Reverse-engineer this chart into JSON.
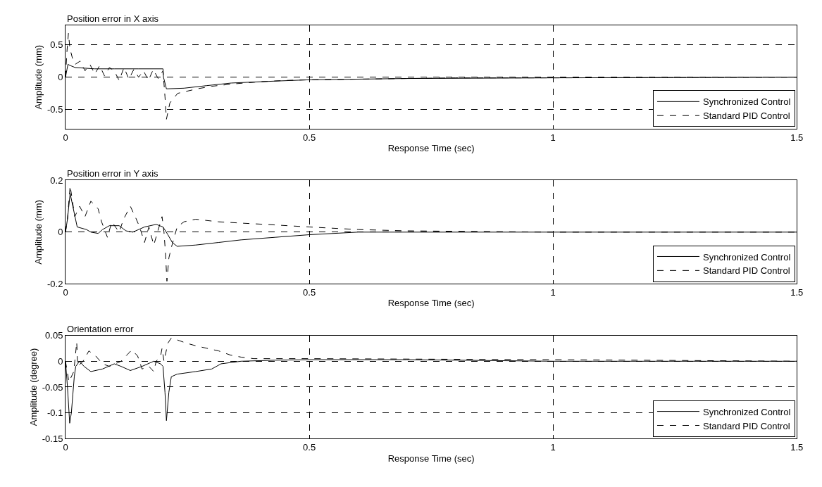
{
  "chart_data": [
    {
      "type": "line",
      "title": "Position error in X axis",
      "xlabel": "Response Time (sec)",
      "ylabel": "Amplitude (mm)",
      "xlim": [
        0,
        1.5
      ],
      "xticks": [
        0,
        0.5,
        1,
        1.5
      ],
      "ylim": [
        -0.8,
        0.8
      ],
      "yticks": [
        -0.5,
        0,
        0.5
      ],
      "grid": true,
      "legend": "bottom right",
      "series": [
        {
          "name": "Synchronized Control",
          "color": "#000000",
          "line_style": "solid",
          "x": [
            0,
            0.003,
            0.005,
            0.01,
            0.02,
            0.04,
            0.06,
            0.1,
            0.15,
            0.2,
            0.201,
            0.207,
            0.243,
            0.29,
            0.34,
            0.43,
            0.5,
            0.7,
            1.0,
            1.5
          ],
          "values": [
            0,
            0.12,
            0.2,
            0.18,
            0.15,
            0.14,
            0.13,
            0.13,
            0.13,
            0.13,
            0,
            -0.18,
            -0.17,
            -0.13,
            -0.09,
            -0.06,
            -0.04,
            -0.02,
            -0.01,
            0
          ]
        },
        {
          "name": "Standard PID Control",
          "color": "#000000",
          "line_style": "dashed",
          "x": [
            0,
            0.003,
            0.006,
            0.009,
            0.014,
            0.02,
            0.03,
            0.04,
            0.05,
            0.06,
            0.07,
            0.08,
            0.09,
            0.1,
            0.11,
            0.12,
            0.13,
            0.14,
            0.15,
            0.16,
            0.17,
            0.18,
            0.19,
            0.2,
            0.204,
            0.207,
            0.214,
            0.23,
            0.27,
            0.3,
            0.35,
            0.4,
            0.45,
            0.5,
            0.6,
            0.7,
            0.8,
            1.0,
            1.5
          ],
          "values": [
            0,
            0.4,
            0.68,
            0.45,
            0.3,
            0.2,
            0.25,
            0.1,
            0.2,
            0.05,
            0.18,
            0.02,
            0.15,
            0.1,
            -0.05,
            0.15,
            -0.03,
            0.12,
            0.0,
            0.1,
            -0.05,
            0.12,
            -0.02,
            0.1,
            -0.3,
            -0.65,
            -0.4,
            -0.25,
            -0.18,
            -0.14,
            -0.1,
            -0.07,
            -0.05,
            -0.04,
            -0.03,
            -0.02,
            -0.01,
            -0.01,
            0
          ]
        }
      ]
    },
    {
      "type": "line",
      "title": "Position error in Y axis",
      "xlabel": "Response Time (sec)",
      "ylabel": "Amplitude (mm)",
      "xlim": [
        0,
        1.5
      ],
      "xticks": [
        0,
        0.5,
        1,
        1.5
      ],
      "ylim": [
        -0.2,
        0.2
      ],
      "yticks": [
        -0.2,
        0,
        0.2
      ],
      "grid": true,
      "legend": "bottom right",
      "series": [
        {
          "name": "Synchronized Control",
          "color": "#000000",
          "line_style": "solid",
          "x": [
            0,
            0.004,
            0.0095,
            0.015,
            0.024,
            0.043,
            0.052,
            0.067,
            0.076,
            0.09,
            0.11,
            0.124,
            0.138,
            0.162,
            0.186,
            0.2,
            0.21,
            0.219,
            0.229,
            0.267,
            0.314,
            0.36,
            0.43,
            0.5,
            0.6,
            1.0,
            1.5
          ],
          "values": [
            0,
            0.05,
            0.15,
            0.1,
            0.02,
            0.01,
            0,
            -0.005,
            0.01,
            0.025,
            0.025,
            0.005,
            0,
            0.02,
            0.03,
            0.02,
            -0.01,
            -0.04,
            -0.055,
            -0.05,
            -0.04,
            -0.03,
            -0.02,
            -0.01,
            0,
            0,
            0
          ]
        },
        {
          "name": "Standard PID Control",
          "color": "#000000",
          "line_style": "dashed",
          "x": [
            0,
            0.004,
            0.0095,
            0.019,
            0.029,
            0.04,
            0.052,
            0.067,
            0.074,
            0.086,
            0.095,
            0.11,
            0.119,
            0.133,
            0.143,
            0.152,
            0.162,
            0.171,
            0.181,
            0.195,
            0.198,
            0.202,
            0.205,
            0.208,
            0.212,
            0.217,
            0.229,
            0.243,
            0.267,
            0.314,
            0.36,
            0.41,
            0.5,
            0.6,
            0.7,
            1.0,
            1.5
          ],
          "values": [
            0,
            0.05,
            0.18,
            0.06,
            0.1,
            0.06,
            0.12,
            0.09,
            0.04,
            -0.02,
            0.04,
            0,
            0.05,
            0.1,
            0.06,
            0.02,
            -0.04,
            0.02,
            -0.05,
            0.04,
            0.06,
            0,
            -0.08,
            -0.19,
            -0.1,
            -0.06,
            0.02,
            0.04,
            0.05,
            0.04,
            0.035,
            0.03,
            0.02,
            0.01,
            0.005,
            0,
            0
          ]
        }
      ]
    },
    {
      "type": "line",
      "title": "Orientation error",
      "xlabel": "Response Time (sec)",
      "ylabel": "Amplitude (degree)",
      "xlim": [
        0,
        1.5
      ],
      "xticks": [
        0,
        0.5,
        1,
        1.5
      ],
      "ylim": [
        -0.15,
        0.05
      ],
      "yticks": [
        -0.15,
        -0.1,
        -0.05,
        0,
        0.05
      ],
      "grid": true,
      "legend": "bottom right",
      "series": [
        {
          "name": "Synchronized Control",
          "color": "#000000",
          "line_style": "solid",
          "x": [
            0,
            0.004,
            0.0086,
            0.012,
            0.015,
            0.018,
            0.021,
            0.029,
            0.038,
            0.052,
            0.076,
            0.1,
            0.114,
            0.133,
            0.157,
            0.181,
            0.195,
            0.2,
            0.204,
            0.207,
            0.212,
            0.217,
            0.229,
            0.267,
            0.3,
            0.319,
            0.36,
            0.43,
            0.5,
            0.7,
            1.0,
            1.5
          ],
          "values": [
            0,
            -0.05,
            -0.12,
            -0.1,
            -0.065,
            -0.03,
            -0.01,
            0,
            -0.01,
            -0.02,
            -0.015,
            -0.005,
            -0.01,
            -0.018,
            -0.01,
            0,
            -0.005,
            -0.01,
            -0.06,
            -0.115,
            -0.06,
            -0.03,
            -0.025,
            -0.02,
            -0.015,
            -0.005,
            0,
            0.002,
            0.003,
            0.003,
            0,
            0
          ]
        },
        {
          "name": "Standard PID Control",
          "color": "#000000",
          "line_style": "dashed",
          "x": [
            0,
            0.007,
            0.017,
            0.023,
            0.025,
            0.036,
            0.048,
            0.062,
            0.076,
            0.09,
            0.114,
            0.136,
            0.148,
            0.157,
            0.171,
            0.181,
            0.186,
            0.195,
            0.198,
            0.202,
            0.21,
            0.217,
            0.233,
            0.248,
            0.267,
            0.29,
            0.314,
            0.338,
            0.36,
            0.386,
            0.5,
            1.0,
            1.5
          ],
          "values": [
            0,
            -0.04,
            -0.02,
            0.037,
            -0.01,
            0,
            0.02,
            0.01,
            -0.005,
            -0.01,
            0,
            0.022,
            0.01,
            -0.015,
            -0.01,
            -0.02,
            0,
            0.01,
            0.025,
            0,
            0.035,
            0.045,
            0.04,
            0.035,
            0.03,
            0.025,
            0.02,
            0.012,
            0.008,
            0.005,
            0.005,
            0.003,
            0
          ]
        }
      ]
    }
  ]
}
